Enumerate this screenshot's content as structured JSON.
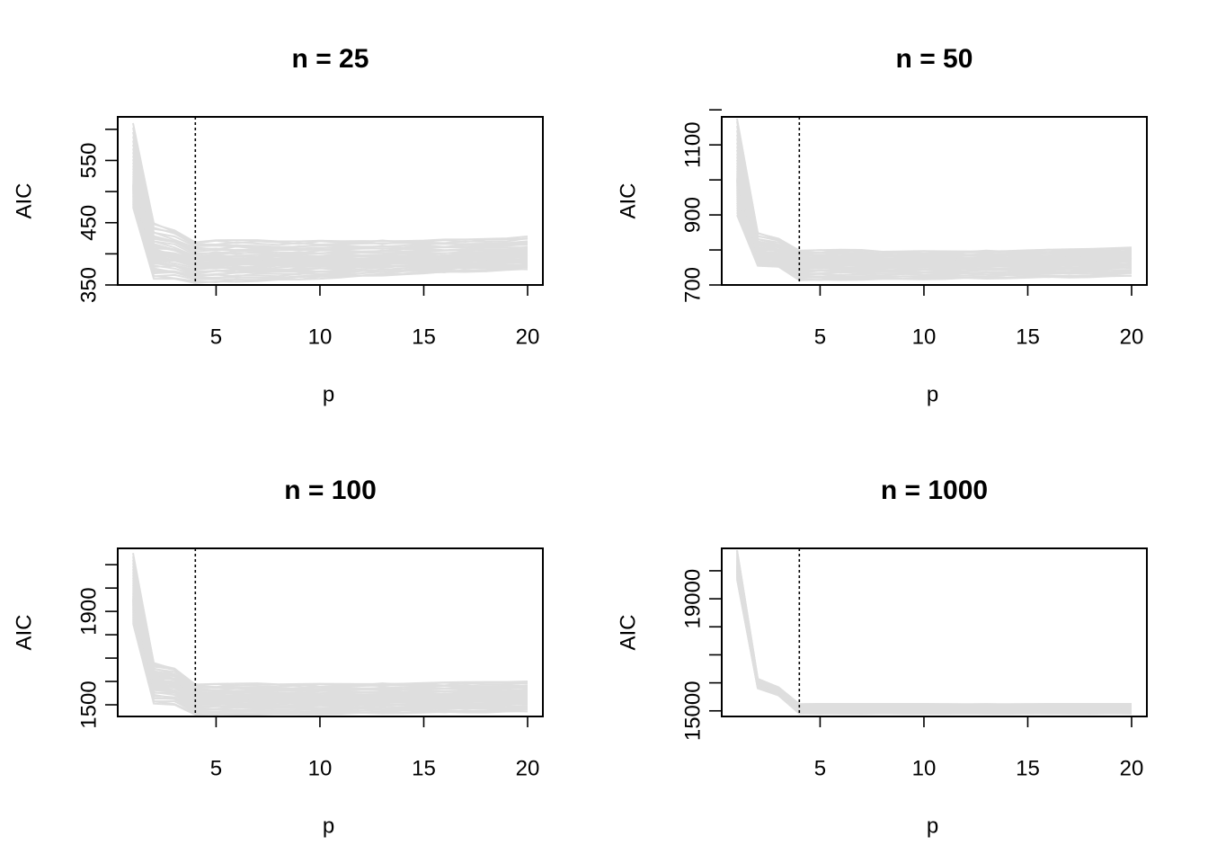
{
  "chart_data": [
    {
      "type": "line",
      "title": "n = 25",
      "xlabel": "p",
      "ylabel": "AIC",
      "xlim": [
        1,
        20
      ],
      "ylim": [
        350,
        620
      ],
      "x_ticks": [
        "5",
        "10",
        "15",
        "20"
      ],
      "y_tick_labels": [
        "350",
        "450",
        "550"
      ],
      "y_minor_ticks": [
        400,
        500,
        600
      ],
      "reference_line": {
        "x": 4,
        "style": "dotted"
      },
      "line_color": "#dedede",
      "x": [
        1,
        2,
        3,
        4,
        5,
        6,
        7,
        8,
        9,
        10,
        11,
        12,
        13,
        14,
        15,
        16,
        17,
        18,
        19,
        20
      ],
      "band_upper": [
        610,
        450,
        440,
        420,
        422,
        422,
        422,
        420,
        420,
        421,
        421,
        422,
        422,
        422,
        422,
        423,
        423,
        424,
        425,
        428
      ],
      "band_lower": [
        475,
        360,
        360,
        352,
        354,
        355,
        356,
        357,
        358,
        360,
        362,
        363,
        365,
        367,
        368,
        370,
        371,
        372,
        373,
        375
      ],
      "band_center": [
        510,
        400,
        395,
        385,
        386,
        387,
        387,
        388,
        388,
        389,
        389,
        390,
        391,
        392,
        393,
        393,
        394,
        395,
        396,
        397
      ]
    },
    {
      "type": "line",
      "title": "n = 50",
      "xlabel": "p",
      "ylabel": "AIC",
      "xlim": [
        1,
        20
      ],
      "ylim": [
        700,
        1180
      ],
      "x_ticks": [
        "5",
        "10",
        "15",
        "20"
      ],
      "y_tick_labels": [
        "700",
        "900",
        "1100"
      ],
      "y_minor_ticks": [
        800,
        1000,
        1200
      ],
      "reference_line": {
        "x": 4,
        "style": "dotted"
      },
      "line_color": "#dedede",
      "x": [
        1,
        2,
        3,
        4,
        5,
        6,
        7,
        8,
        9,
        10,
        11,
        12,
        13,
        14,
        15,
        16,
        17,
        18,
        19,
        20
      ],
      "band_upper": [
        1180,
        850,
        835,
        800,
        800,
        801,
        800,
        795,
        796,
        797,
        797,
        798,
        798,
        799,
        800,
        801,
        802,
        803,
        805,
        807
      ],
      "band_lower": [
        900,
        755,
        752,
        712,
        713,
        714,
        715,
        715,
        716,
        716,
        717,
        718,
        718,
        719,
        720,
        721,
        721,
        722,
        723,
        725
      ],
      "band_center": [
        1000,
        790,
        785,
        760,
        761,
        761,
        762,
        762,
        763,
        764,
        765,
        765,
        766,
        767,
        768,
        769,
        770,
        771,
        772,
        774
      ]
    },
    {
      "type": "line",
      "title": "n = 100",
      "xlabel": "p",
      "ylabel": "AIC",
      "xlim": [
        1,
        20
      ],
      "ylim": [
        1450,
        2170
      ],
      "x_ticks": [
        "5",
        "10",
        "15",
        "20"
      ],
      "y_tick_labels": [
        "1500",
        "1900"
      ],
      "y_minor_ticks": [
        1600,
        1700,
        1800,
        2000,
        2100
      ],
      "reference_line": {
        "x": 4,
        "style": "dotted"
      },
      "line_color": "#dedede",
      "x": [
        1,
        2,
        3,
        4,
        5,
        6,
        7,
        8,
        9,
        10,
        11,
        12,
        13,
        14,
        15,
        16,
        17,
        18,
        19,
        20
      ],
      "band_upper": [
        2150,
        1680,
        1660,
        1590,
        1590,
        1591,
        1592,
        1588,
        1589,
        1590,
        1591,
        1592,
        1593,
        1594,
        1595,
        1596,
        1597,
        1598,
        1598,
        1600
      ],
      "band_lower": [
        1850,
        1505,
        1500,
        1455,
        1456,
        1457,
        1457,
        1458,
        1459,
        1460,
        1461,
        1462,
        1463,
        1464,
        1465,
        1466,
        1467,
        1467,
        1468,
        1470
      ],
      "band_center": [
        1950,
        1600,
        1590,
        1520,
        1521,
        1522,
        1523,
        1523,
        1524,
        1525,
        1526,
        1527,
        1528,
        1529,
        1530,
        1531,
        1532,
        1533,
        1534,
        1535
      ]
    },
    {
      "type": "line",
      "title": "n = 1000",
      "xlabel": "p",
      "ylabel": "AIC",
      "xlim": [
        1,
        20
      ],
      "ylim": [
        14800,
        20800
      ],
      "x_ticks": [
        "5",
        "10",
        "15",
        "20"
      ],
      "y_tick_labels": [
        "15000",
        "19000"
      ],
      "y_minor_ticks": [
        16000,
        17000,
        18000,
        20000
      ],
      "reference_line": {
        "x": 4,
        "style": "dotted"
      },
      "line_color": "#dedede",
      "x": [
        1,
        2,
        3,
        4,
        5,
        6,
        7,
        8,
        9,
        10,
        11,
        12,
        13,
        14,
        15,
        16,
        17,
        18,
        19,
        20
      ],
      "band_upper": [
        20800,
        16150,
        15850,
        15250,
        15250,
        15250,
        15250,
        15250,
        15250,
        15250,
        15250,
        15250,
        15250,
        15250,
        15250,
        15250,
        15250,
        15250,
        15250,
        15250
      ],
      "band_lower": [
        19700,
        15800,
        15550,
        14900,
        14900,
        14900,
        14900,
        14900,
        14900,
        14900,
        14900,
        14900,
        14900,
        14900,
        14900,
        14900,
        14900,
        14900,
        14900,
        14900
      ],
      "band_center": [
        20100,
        15950,
        15700,
        15050,
        15050,
        15050,
        15050,
        15050,
        15050,
        15050,
        15050,
        15050,
        15050,
        15050,
        15050,
        15050,
        15050,
        15050,
        15050,
        15050
      ]
    }
  ]
}
